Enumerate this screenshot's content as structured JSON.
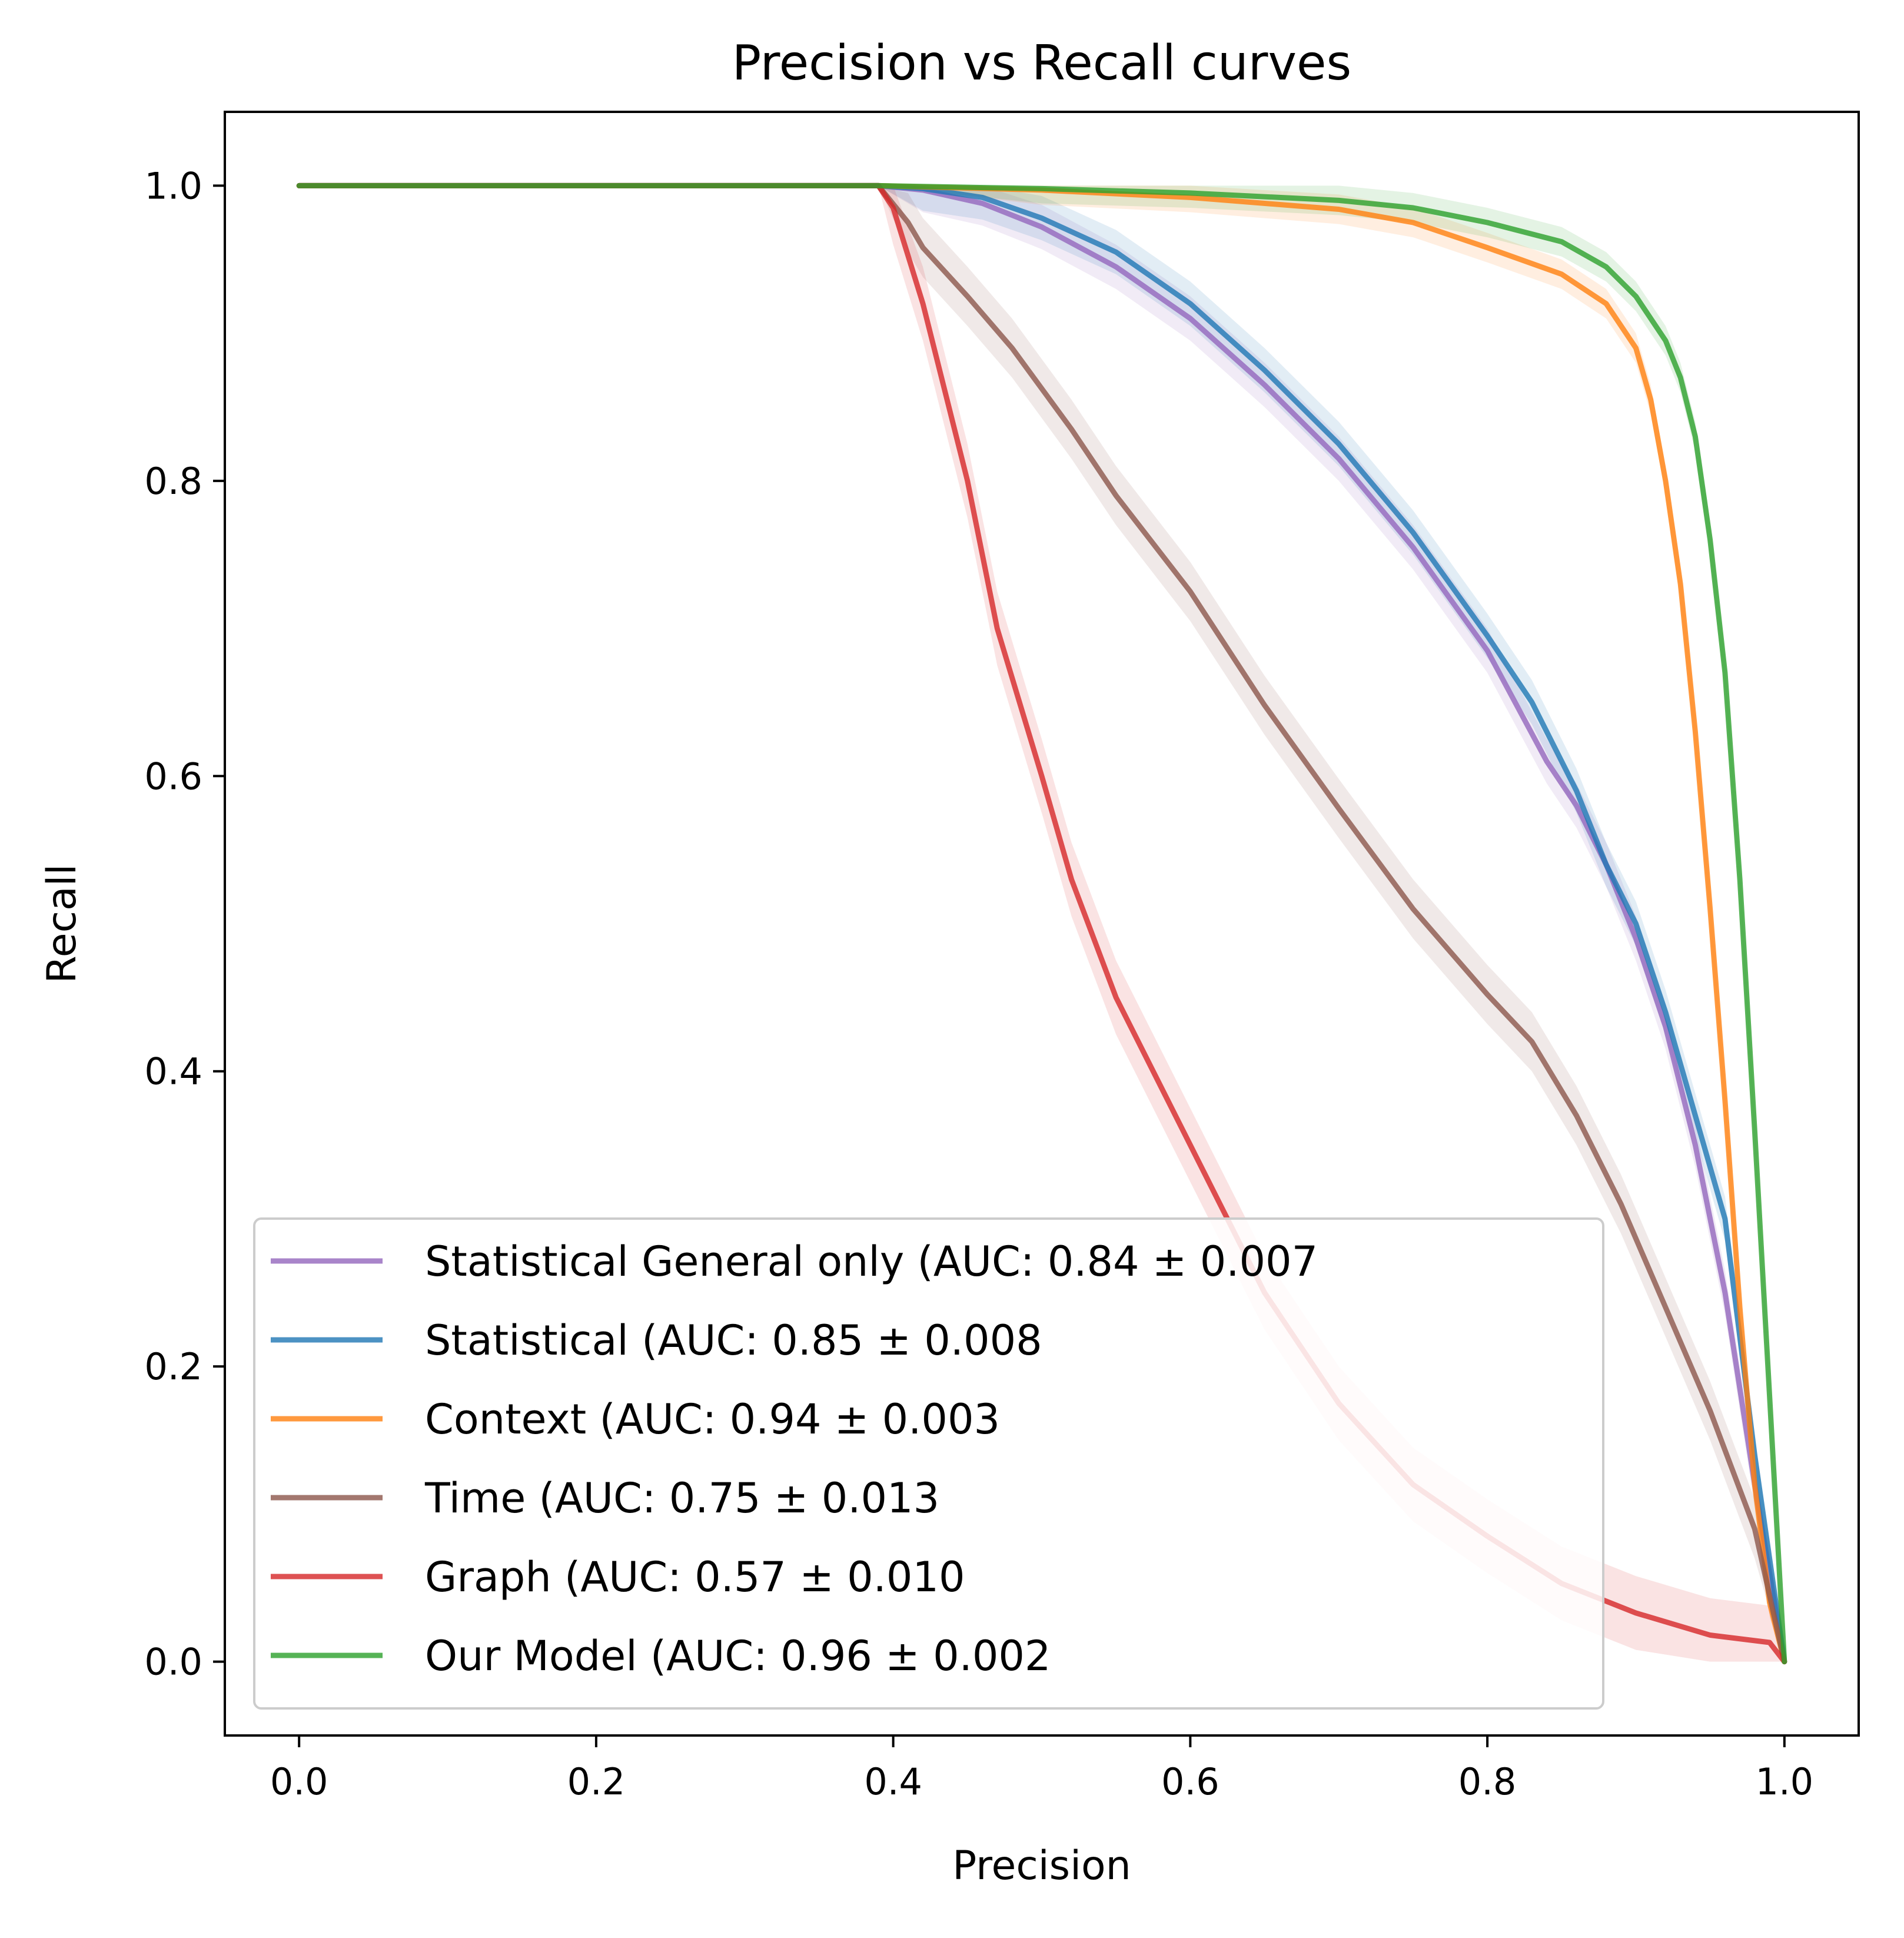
{
  "chart_data": {
    "type": "line",
    "title": "Precision vs Recall curves",
    "xlabel": "Precision",
    "ylabel": "Recall",
    "xlim": [
      -0.05,
      1.05
    ],
    "ylim": [
      -0.05,
      1.05
    ],
    "xticks": [
      "0.0",
      "0.2",
      "0.4",
      "0.6",
      "0.8",
      "1.0"
    ],
    "yticks": [
      "0.0",
      "0.2",
      "0.4",
      "0.6",
      "0.8",
      "1.0"
    ],
    "grid": false,
    "legend_position": "lower-left",
    "series": [
      {
        "name": "Statistical General only (AUC: 0.84 ± 0.007",
        "color": "#9467bd",
        "band": 0.015,
        "points": [
          [
            0,
            1
          ],
          [
            0.39,
            1
          ],
          [
            0.42,
            0.997
          ],
          [
            0.46,
            0.988
          ],
          [
            0.5,
            0.972
          ],
          [
            0.55,
            0.945
          ],
          [
            0.6,
            0.91
          ],
          [
            0.65,
            0.865
          ],
          [
            0.7,
            0.815
          ],
          [
            0.75,
            0.755
          ],
          [
            0.8,
            0.685
          ],
          [
            0.84,
            0.61
          ],
          [
            0.86,
            0.58
          ],
          [
            0.88,
            0.54
          ],
          [
            0.9,
            0.49
          ],
          [
            0.92,
            0.43
          ],
          [
            0.94,
            0.35
          ],
          [
            0.96,
            0.25
          ],
          [
            0.98,
            0.12
          ],
          [
            1,
            0
          ]
        ]
      },
      {
        "name": "Statistical (AUC: 0.85 ± 0.008",
        "color": "#1f77b4",
        "band": 0.015,
        "points": [
          [
            0,
            1
          ],
          [
            0.39,
            1
          ],
          [
            0.42,
            0.998
          ],
          [
            0.46,
            0.992
          ],
          [
            0.5,
            0.978
          ],
          [
            0.55,
            0.955
          ],
          [
            0.6,
            0.92
          ],
          [
            0.65,
            0.875
          ],
          [
            0.7,
            0.825
          ],
          [
            0.75,
            0.765
          ],
          [
            0.8,
            0.695
          ],
          [
            0.83,
            0.65
          ],
          [
            0.86,
            0.59
          ],
          [
            0.88,
            0.54
          ],
          [
            0.9,
            0.5
          ],
          [
            0.92,
            0.44
          ],
          [
            0.94,
            0.37
          ],
          [
            0.96,
            0.3
          ],
          [
            0.98,
            0.14
          ],
          [
            1,
            0
          ]
        ]
      },
      {
        "name": "Context  (AUC: 0.94 ± 0.003",
        "color": "#ff7f0e",
        "band": 0.01,
        "points": [
          [
            0,
            1
          ],
          [
            0.39,
            1
          ],
          [
            0.5,
            0.997
          ],
          [
            0.6,
            0.992
          ],
          [
            0.7,
            0.984
          ],
          [
            0.75,
            0.975
          ],
          [
            0.8,
            0.958
          ],
          [
            0.85,
            0.94
          ],
          [
            0.88,
            0.92
          ],
          [
            0.9,
            0.89
          ],
          [
            0.91,
            0.855
          ],
          [
            0.92,
            0.8
          ],
          [
            0.93,
            0.73
          ],
          [
            0.94,
            0.63
          ],
          [
            0.95,
            0.51
          ],
          [
            0.96,
            0.38
          ],
          [
            0.97,
            0.24
          ],
          [
            0.98,
            0.12
          ],
          [
            0.99,
            0.04
          ],
          [
            1,
            0
          ]
        ]
      },
      {
        "name": "Time (AUC: 0.75 ± 0.013",
        "color": "#8c564b",
        "band": 0.02,
        "points": [
          [
            0,
            1
          ],
          [
            0.39,
            1
          ],
          [
            0.41,
            0.975
          ],
          [
            0.42,
            0.958
          ],
          [
            0.45,
            0.925
          ],
          [
            0.48,
            0.89
          ],
          [
            0.52,
            0.835
          ],
          [
            0.55,
            0.79
          ],
          [
            0.6,
            0.725
          ],
          [
            0.65,
            0.648
          ],
          [
            0.7,
            0.578
          ],
          [
            0.75,
            0.51
          ],
          [
            0.8,
            0.452
          ],
          [
            0.83,
            0.42
          ],
          [
            0.86,
            0.37
          ],
          [
            0.89,
            0.31
          ],
          [
            0.92,
            0.24
          ],
          [
            0.95,
            0.17
          ],
          [
            0.98,
            0.09
          ],
          [
            1,
            0
          ]
        ]
      },
      {
        "name": "Graph (AUC: 0.57 ± 0.010",
        "color": "#d62728",
        "band": 0.025,
        "points": [
          [
            0,
            1
          ],
          [
            0.39,
            1
          ],
          [
            0.4,
            0.985
          ],
          [
            0.42,
            0.92
          ],
          [
            0.45,
            0.8
          ],
          [
            0.47,
            0.7
          ],
          [
            0.5,
            0.6
          ],
          [
            0.52,
            0.53
          ],
          [
            0.55,
            0.45
          ],
          [
            0.58,
            0.39
          ],
          [
            0.61,
            0.33
          ],
          [
            0.65,
            0.25
          ],
          [
            0.7,
            0.175
          ],
          [
            0.75,
            0.12
          ],
          [
            0.8,
            0.085
          ],
          [
            0.85,
            0.053
          ],
          [
            0.9,
            0.033
          ],
          [
            0.95,
            0.018
          ],
          [
            0.99,
            0.013
          ],
          [
            1,
            0
          ]
        ]
      },
      {
        "name": "Our Model (AUC: 0.96 ± 0.002",
        "color": "#2ca02c",
        "band": 0.01,
        "points": [
          [
            0,
            1
          ],
          [
            0.39,
            1
          ],
          [
            0.5,
            0.998
          ],
          [
            0.6,
            0.995
          ],
          [
            0.7,
            0.99
          ],
          [
            0.75,
            0.985
          ],
          [
            0.8,
            0.975
          ],
          [
            0.85,
            0.962
          ],
          [
            0.88,
            0.945
          ],
          [
            0.9,
            0.925
          ],
          [
            0.92,
            0.895
          ],
          [
            0.93,
            0.87
          ],
          [
            0.94,
            0.83
          ],
          [
            0.95,
            0.76
          ],
          [
            0.96,
            0.67
          ],
          [
            0.97,
            0.53
          ],
          [
            0.98,
            0.36
          ],
          [
            0.99,
            0.18
          ],
          [
            1,
            0
          ]
        ]
      }
    ]
  }
}
